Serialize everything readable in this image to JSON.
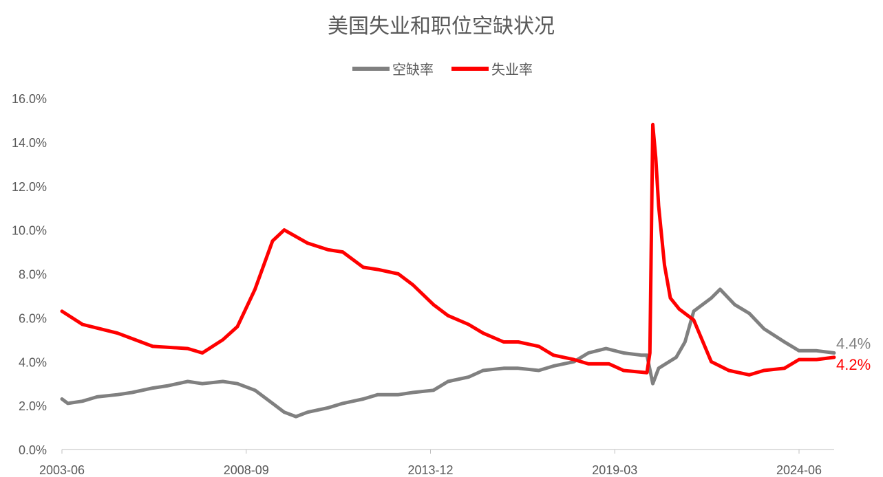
{
  "chart_data": {
    "type": "line",
    "title": "美国失业和职位空缺状况",
    "xlabel": "",
    "ylabel": "",
    "ylim": [
      0,
      16
    ],
    "y_tick_labels": [
      "0.0%",
      "2.0%",
      "4.0%",
      "6.0%",
      "8.0%",
      "10.0%",
      "12.0%",
      "14.0%",
      "16.0%"
    ],
    "x_range": [
      "2003-06",
      "2025-06"
    ],
    "x_tick_labels": [
      "2003-06",
      "2008-09",
      "2013-12",
      "2019-03",
      "2024-06"
    ],
    "grid": false,
    "legend": "top-center",
    "series": [
      {
        "name": "空缺率",
        "color": "#808080",
        "end_label": "4.4%",
        "points": [
          [
            "2003-06",
            2.3
          ],
          [
            "2003-08",
            2.1
          ],
          [
            "2004-01",
            2.2
          ],
          [
            "2004-06",
            2.4
          ],
          [
            "2005-01",
            2.5
          ],
          [
            "2005-06",
            2.6
          ],
          [
            "2006-01",
            2.8
          ],
          [
            "2006-06",
            2.9
          ],
          [
            "2007-01",
            3.1
          ],
          [
            "2007-06",
            3.0
          ],
          [
            "2008-01",
            3.1
          ],
          [
            "2008-06",
            3.0
          ],
          [
            "2008-12",
            2.7
          ],
          [
            "2009-06",
            2.1
          ],
          [
            "2009-10",
            1.7
          ],
          [
            "2010-02",
            1.5
          ],
          [
            "2010-06",
            1.7
          ],
          [
            "2011-01",
            1.9
          ],
          [
            "2011-06",
            2.1
          ],
          [
            "2012-01",
            2.3
          ],
          [
            "2012-06",
            2.5
          ],
          [
            "2013-01",
            2.5
          ],
          [
            "2013-06",
            2.6
          ],
          [
            "2014-01",
            2.7
          ],
          [
            "2014-06",
            3.1
          ],
          [
            "2015-01",
            3.3
          ],
          [
            "2015-06",
            3.6
          ],
          [
            "2016-01",
            3.7
          ],
          [
            "2016-06",
            3.7
          ],
          [
            "2017-01",
            3.6
          ],
          [
            "2017-06",
            3.8
          ],
          [
            "2018-01",
            4.0
          ],
          [
            "2018-06",
            4.4
          ],
          [
            "2018-12",
            4.6
          ],
          [
            "2019-06",
            4.4
          ],
          [
            "2019-12",
            4.3
          ],
          [
            "2020-02",
            4.3
          ],
          [
            "2020-04",
            3.0
          ],
          [
            "2020-06",
            3.7
          ],
          [
            "2020-12",
            4.2
          ],
          [
            "2021-03",
            4.9
          ],
          [
            "2021-06",
            6.3
          ],
          [
            "2021-12",
            6.9
          ],
          [
            "2022-03",
            7.3
          ],
          [
            "2022-08",
            6.6
          ],
          [
            "2023-01",
            6.2
          ],
          [
            "2023-06",
            5.5
          ],
          [
            "2024-01",
            4.9
          ],
          [
            "2024-06",
            4.5
          ],
          [
            "2024-12",
            4.5
          ],
          [
            "2025-06",
            4.4
          ]
        ]
      },
      {
        "name": "失业率",
        "color": "#ff0000",
        "end_label": "4.2%",
        "points": [
          [
            "2003-06",
            6.3
          ],
          [
            "2004-01",
            5.7
          ],
          [
            "2005-01",
            5.3
          ],
          [
            "2006-01",
            4.7
          ],
          [
            "2007-01",
            4.6
          ],
          [
            "2007-06",
            4.4
          ],
          [
            "2008-01",
            5.0
          ],
          [
            "2008-06",
            5.6
          ],
          [
            "2008-12",
            7.3
          ],
          [
            "2009-06",
            9.5
          ],
          [
            "2009-10",
            10.0
          ],
          [
            "2010-06",
            9.4
          ],
          [
            "2011-01",
            9.1
          ],
          [
            "2011-06",
            9.0
          ],
          [
            "2012-01",
            8.3
          ],
          [
            "2012-06",
            8.2
          ],
          [
            "2013-01",
            8.0
          ],
          [
            "2013-06",
            7.5
          ],
          [
            "2014-01",
            6.6
          ],
          [
            "2014-06",
            6.1
          ],
          [
            "2015-01",
            5.7
          ],
          [
            "2015-06",
            5.3
          ],
          [
            "2016-01",
            4.9
          ],
          [
            "2016-06",
            4.9
          ],
          [
            "2017-01",
            4.7
          ],
          [
            "2017-06",
            4.3
          ],
          [
            "2018-01",
            4.1
          ],
          [
            "2018-06",
            3.9
          ],
          [
            "2019-01",
            3.9
          ],
          [
            "2019-06",
            3.6
          ],
          [
            "2020-02",
            3.5
          ],
          [
            "2020-03",
            4.4
          ],
          [
            "2020-04",
            14.8
          ],
          [
            "2020-05",
            13.3
          ],
          [
            "2020-06",
            11.1
          ],
          [
            "2020-08",
            8.4
          ],
          [
            "2020-10",
            6.9
          ],
          [
            "2021-01",
            6.4
          ],
          [
            "2021-06",
            5.9
          ],
          [
            "2021-12",
            4.0
          ],
          [
            "2022-06",
            3.6
          ],
          [
            "2023-01",
            3.4
          ],
          [
            "2023-06",
            3.6
          ],
          [
            "2024-01",
            3.7
          ],
          [
            "2024-06",
            4.1
          ],
          [
            "2024-12",
            4.1
          ],
          [
            "2025-06",
            4.2
          ]
        ]
      }
    ]
  }
}
